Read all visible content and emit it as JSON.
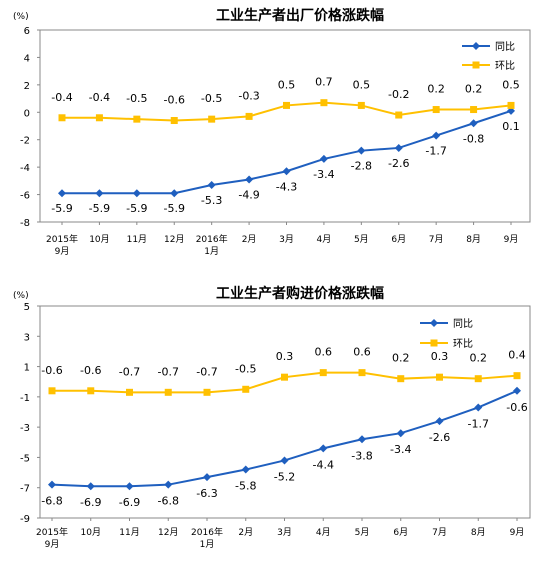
{
  "chart_data": [
    {
      "type": "line",
      "title": "工业生产者出厂价格涨跌幅",
      "unit": "(%)",
      "categories": [
        [
          "2015年",
          "9月"
        ],
        [
          "10月"
        ],
        [
          "11月"
        ],
        [
          "12月"
        ],
        [
          "2016年",
          "1月"
        ],
        [
          "2月"
        ],
        [
          "3月"
        ],
        [
          "4月"
        ],
        [
          "5月"
        ],
        [
          "6月"
        ],
        [
          "7月"
        ],
        [
          "8月"
        ],
        [
          "9月"
        ]
      ],
      "yticks": [
        "6",
        "4",
        "2",
        "0",
        "-2",
        "-4",
        "-6",
        "-8"
      ],
      "ylim": [
        -8,
        6
      ],
      "grid": false,
      "legend_position": "top-right",
      "series": [
        {
          "name": "同比",
          "color": "#1f5fbf",
          "marker": "diamond",
          "values": [
            -5.9,
            -5.9,
            -5.9,
            -5.9,
            -5.3,
            -4.9,
            -4.3,
            -3.4,
            -2.8,
            -2.6,
            -1.7,
            -0.8,
            0.1
          ],
          "labels": [
            "-5.9",
            "-5.9",
            "-5.9",
            "-5.9",
            "-5.3",
            "-4.9",
            "-4.3",
            "-3.4",
            "-2.8",
            "-2.6",
            "-1.7",
            "-0.8",
            "0.1"
          ]
        },
        {
          "name": "环比",
          "color": "#ffc000",
          "marker": "square",
          "values": [
            -0.4,
            -0.4,
            -0.5,
            -0.6,
            -0.5,
            -0.3,
            0.5,
            0.7,
            0.5,
            -0.2,
            0.2,
            0.2,
            0.5
          ],
          "labels": [
            "-0.4",
            "-0.4",
            "-0.5",
            "-0.6",
            "-0.5",
            "-0.3",
            "0.5",
            "0.7",
            "0.5",
            "-0.2",
            "0.2",
            "0.2",
            "0.5"
          ]
        }
      ]
    },
    {
      "type": "line",
      "title": "工业生产者购进价格涨跌幅",
      "unit": "(%)",
      "categories": [
        [
          "2015年",
          "9月"
        ],
        [
          "10月"
        ],
        [
          "11月"
        ],
        [
          "12月"
        ],
        [
          "2016年",
          "1月"
        ],
        [
          "2月"
        ],
        [
          "3月"
        ],
        [
          "4月"
        ],
        [
          "5月"
        ],
        [
          "6月"
        ],
        [
          "7月"
        ],
        [
          "8月"
        ],
        [
          "9月"
        ]
      ],
      "yticks": [
        "5",
        "3",
        "1",
        "-1",
        "-3",
        "-5",
        "-7",
        "-9"
      ],
      "ylim": [
        -9,
        5
      ],
      "grid": false,
      "legend_position": "top-right",
      "series": [
        {
          "name": "同比",
          "color": "#1f5fbf",
          "marker": "diamond",
          "values": [
            -6.8,
            -6.9,
            -6.9,
            -6.8,
            -6.3,
            -5.8,
            -5.2,
            -4.4,
            -3.8,
            -3.4,
            -2.6,
            -1.7,
            -0.6
          ],
          "labels": [
            "-6.8",
            "-6.9",
            "-6.9",
            "-6.8",
            "-6.3",
            "-5.8",
            "-5.2",
            "-4.4",
            "-3.8",
            "-3.4",
            "-2.6",
            "-1.7",
            "-0.6"
          ]
        },
        {
          "name": "环比",
          "color": "#ffc000",
          "marker": "square",
          "values": [
            -0.6,
            -0.6,
            -0.7,
            -0.7,
            -0.7,
            -0.5,
            0.3,
            0.6,
            0.6,
            0.2,
            0.3,
            0.2,
            0.4
          ],
          "labels": [
            "-0.6",
            "-0.6",
            "-0.7",
            "-0.7",
            "-0.7",
            "-0.5",
            "0.3",
            "0.6",
            "0.6",
            "0.2",
            "0.3",
            "0.2",
            "0.4"
          ]
        }
      ]
    }
  ]
}
